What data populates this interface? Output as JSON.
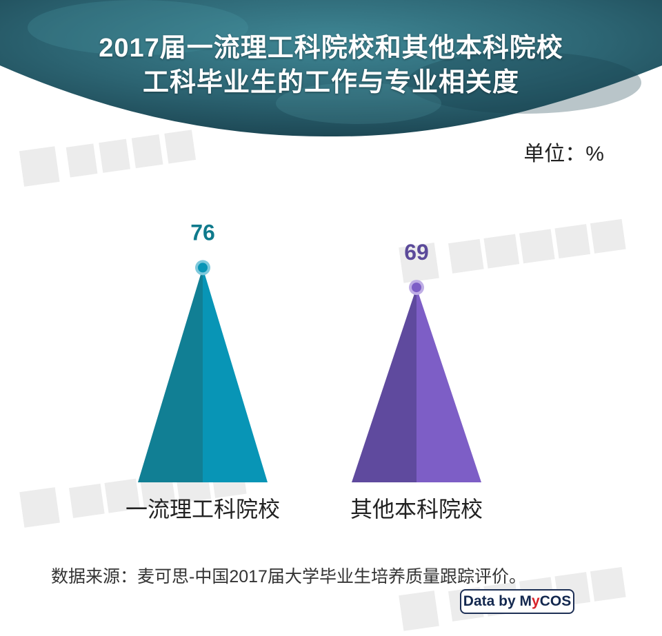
{
  "header": {
    "title_line1": "2017届一流理工科院校和其他本科院校",
    "title_line2": "工科毕业生的工作与专业相关度",
    "background_color": "#2e6b79"
  },
  "unit_label": "单位：%",
  "watermark": "麦可思研究",
  "source": "数据来源：麦可思-中国2017届大学毕业生培养质量跟踪评价。",
  "logo": "Data by MyCOS",
  "chart_data": {
    "type": "bar",
    "mark": "triangle",
    "categories": [
      "一流理工科院校",
      "其他本科院校"
    ],
    "values": [
      76,
      69
    ],
    "colors": [
      {
        "dark": "#117f94",
        "light": "#0895b6",
        "dot_ring": "#7ec9dc",
        "label": "#0f7a8c"
      },
      {
        "dark": "#5f4a9e",
        "light": "#7d5ec6",
        "dot_ring": "#bfaee5",
        "label": "#5b4a9a"
      }
    ]
  }
}
